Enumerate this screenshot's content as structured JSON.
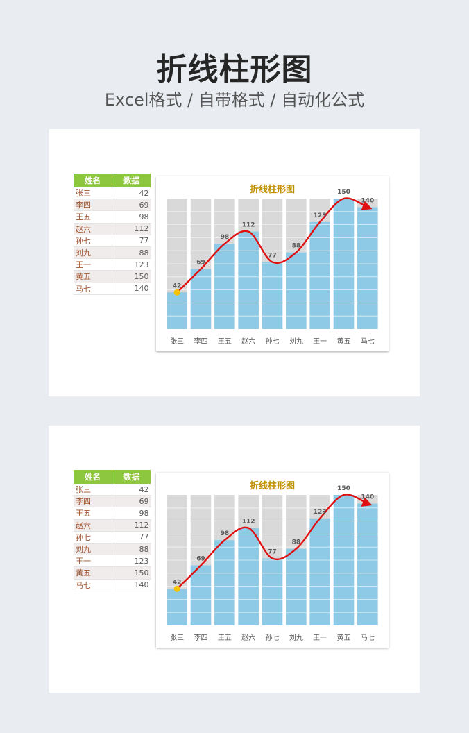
{
  "header": {
    "title": "折线柱形图",
    "subtitle": "Excel格式 / 自带格式 / 自动化公式"
  },
  "table": {
    "headers": [
      "姓名",
      "数据"
    ],
    "rows": [
      {
        "name": "张三",
        "value": "42"
      },
      {
        "name": "李四",
        "value": "69"
      },
      {
        "name": "王五",
        "value": "98"
      },
      {
        "name": "赵六",
        "value": "112"
      },
      {
        "name": "孙七",
        "value": "77"
      },
      {
        "name": "刘九",
        "value": "88"
      },
      {
        "name": "王一",
        "value": "123"
      },
      {
        "name": "黄五",
        "value": "150"
      },
      {
        "name": "马七",
        "value": "140"
      }
    ]
  },
  "colors": {
    "bar": "#8ecae6",
    "background_bar": "#d9d9d9",
    "line": "#e01010",
    "start_marker": "#f5c400",
    "title": "#c09000",
    "header_green": "#8dc63f"
  },
  "chart_data": [
    {
      "type": "bar",
      "title": "折线柱形图",
      "categories": [
        "张三",
        "李四",
        "王五",
        "赵六",
        "孙七",
        "刘九",
        "王一",
        "黄五",
        "马七"
      ],
      "values": [
        42,
        69,
        98,
        112,
        77,
        88,
        123,
        150,
        140
      ],
      "ylim": [
        0,
        150
      ],
      "grid": true,
      "overlay": "smooth-line-arrow"
    },
    {
      "type": "bar",
      "title": "折线柱形图",
      "categories": [
        "张三",
        "李四",
        "王五",
        "赵六",
        "孙七",
        "刘九",
        "王一",
        "黄五",
        "马七"
      ],
      "values": [
        42,
        69,
        98,
        112,
        77,
        88,
        123,
        150,
        140
      ],
      "ylim": [
        0,
        150
      ],
      "grid": true,
      "overlay": "smooth-line-arrow"
    }
  ]
}
